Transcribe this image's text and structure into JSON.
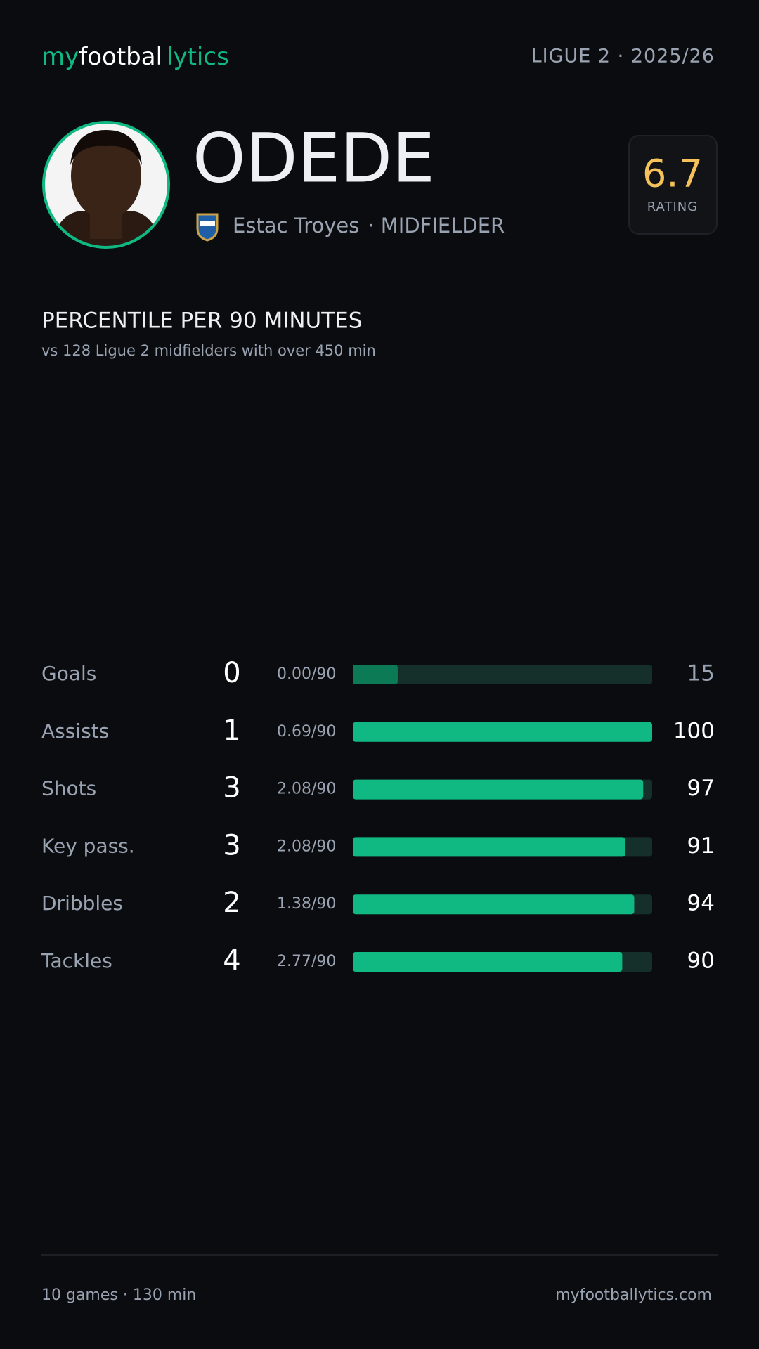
{
  "header": {
    "brand": [
      "my",
      "footbal",
      "lytics"
    ],
    "league": "LIGUE 2 · 2025/26"
  },
  "player": {
    "name": "ODEDE",
    "club": "Estac Troyes",
    "position": "· MIDFIELDER"
  },
  "rating": {
    "value": 6.7,
    "label": "RATING"
  },
  "section": {
    "title": "PERCENTILE PER 90 MINUTES",
    "subtitle": "vs 128 Ligue 2 midfielders with over 450 min"
  },
  "stats": {
    "xlim": [
      0,
      100
    ],
    "rows": [
      {
        "label": "Goals",
        "total": 0,
        "per90": "0.00/90",
        "percentile": 15,
        "color": "#0b7a55",
        "value_color": "#9aa3b2"
      },
      {
        "label": "Assists",
        "total": 1,
        "per90": "0.69/90",
        "percentile": 100,
        "color": "#10b981",
        "value_color": "#ffffff"
      },
      {
        "label": "Shots",
        "total": 3,
        "per90": "2.08/90",
        "percentile": 97,
        "color": "#10b981",
        "value_color": "#ffffff"
      },
      {
        "label": "Key pass.",
        "total": 3,
        "per90": "2.08/90",
        "percentile": 91,
        "color": "#10b981",
        "value_color": "#ffffff"
      },
      {
        "label": "Dribbles",
        "total": 2,
        "per90": "1.38/90",
        "percentile": 94,
        "color": "#10b981",
        "value_color": "#ffffff"
      },
      {
        "label": "Tackles",
        "total": 4,
        "per90": "2.77/90",
        "percentile": 90,
        "color": "#10b981",
        "value_color": "#ffffff"
      }
    ]
  },
  "footer": {
    "left": "10 games · 130 min",
    "right": "myfootballytics.com"
  }
}
